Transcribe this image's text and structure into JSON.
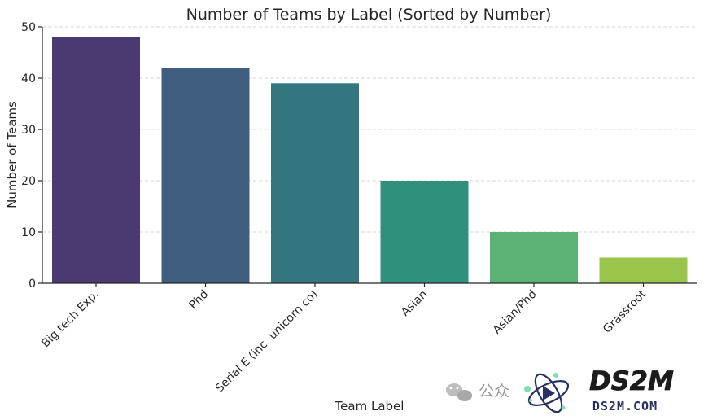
{
  "chart_data": {
    "type": "bar",
    "title": "Number of Teams by Label (Sorted by Number)",
    "xlabel": "Team Label",
    "ylabel": "Number of Teams",
    "categories": [
      "Big tech Exp.",
      "Phd",
      "Serial E (inc. unicorn co)",
      "Asian",
      "Asian/Phd",
      "Grassroot"
    ],
    "values": [
      48,
      42,
      39,
      20,
      10,
      5
    ],
    "colors": [
      "#4b3a72",
      "#3f5e80",
      "#33767f",
      "#2f917b",
      "#5ab274",
      "#9ac44b"
    ],
    "ylim": [
      0,
      50
    ],
    "yticks": [
      0,
      10,
      20,
      30,
      40,
      50
    ],
    "grid": "horizontal dashed"
  },
  "watermark": {
    "channel_text": "公众",
    "brand": "DS2M",
    "domain": "DS2M.COM",
    "icon": "wechat-icon"
  }
}
